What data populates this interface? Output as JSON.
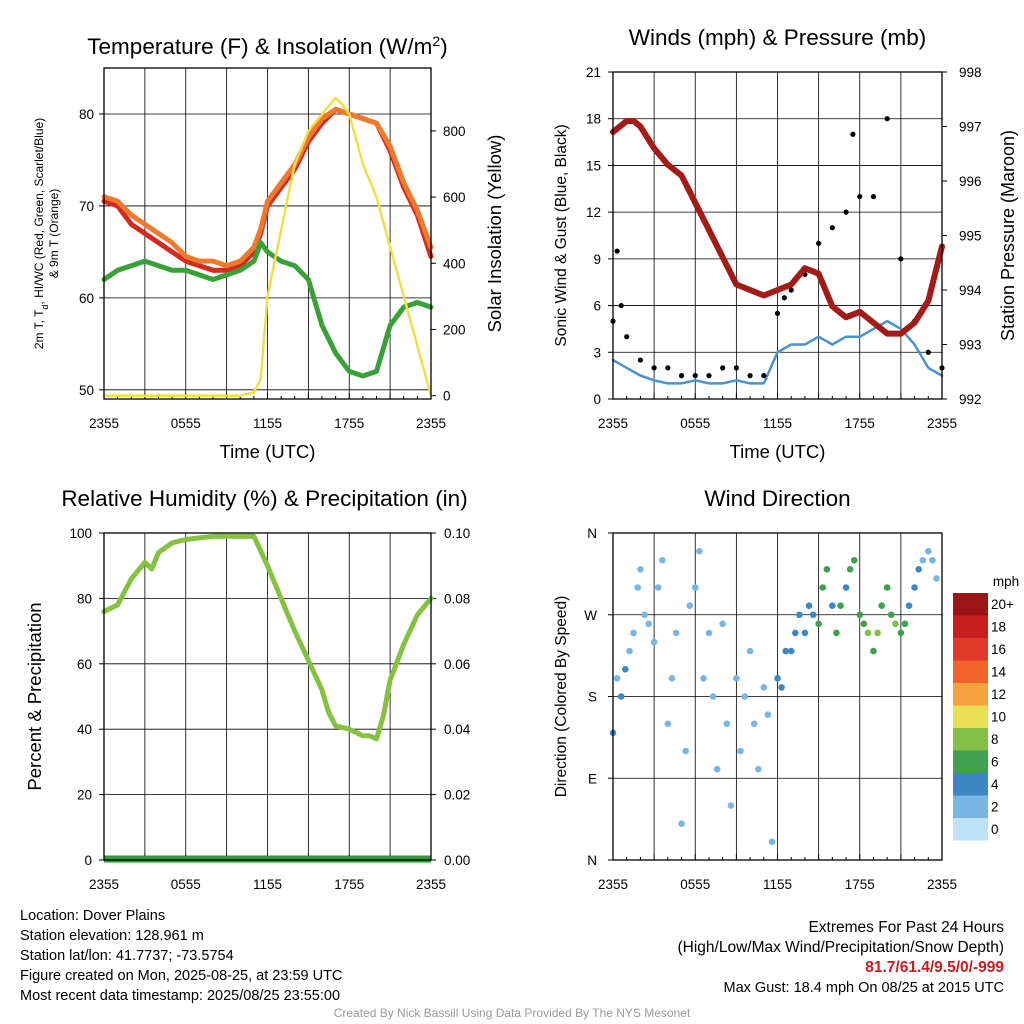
{
  "colors": {
    "temp": "#d42a1f",
    "heat_index": "#f07a2c",
    "dewpoint": "#3aa03a",
    "insolation": "#f4dd4a",
    "wind": "#4a92d0",
    "gust": "#000000",
    "pressure": "#a31a17",
    "rh": "#86c13f",
    "precip": "#2e9a3a",
    "accent_text": "#c61d22"
  },
  "x_ticks": [
    "2355",
    "0555",
    "1155",
    "1755",
    "2355"
  ],
  "chart_data": [
    {
      "id": "temp_insolation",
      "type": "line",
      "title": "Temperature (F) & Insolation (W/m²)",
      "xlabel": "Time (UTC)",
      "ylabel": "2m T, Td, HI/WC (Red, Green, Scarlet/Blue) & 9m T (Orange)",
      "ylabel_lines": [
        "2m T, T",
        "d",
        ", HI/WC (Red, Green, Scarlet/Blue)",
        "& 9m T (Orange)"
      ],
      "y2label": "Solar Insolation (Yellow)",
      "x_range_hours": [
        0,
        24
      ],
      "ylim": [
        49,
        85
      ],
      "yticks": [
        50,
        60,
        70,
        80
      ],
      "y2lim": [
        -10,
        990
      ],
      "y2ticks": [
        0,
        200,
        400,
        600,
        800
      ],
      "series": [
        {
          "name": "2m T",
          "color_key": "temp",
          "x": [
            0,
            1,
            2,
            3,
            4,
            5,
            6,
            7,
            8,
            9,
            10,
            11,
            11.5,
            12,
            13,
            14,
            15,
            16,
            17,
            18,
            19,
            20,
            21,
            22,
            23,
            24
          ],
          "y": [
            70.5,
            70,
            68,
            67,
            66,
            65,
            64,
            63.5,
            63,
            63,
            63.5,
            65,
            67,
            70,
            72,
            74,
            77,
            79,
            80.5,
            80,
            79.5,
            79,
            76,
            72,
            69,
            64.5
          ]
        },
        {
          "name": "9m T",
          "color_key": "heat_index",
          "x": [
            0,
            1,
            2,
            3,
            4,
            5,
            6,
            7,
            8,
            9,
            10,
            11,
            11.5,
            12,
            13,
            14,
            15,
            16,
            17,
            18,
            19,
            20,
            21,
            22,
            23,
            24
          ],
          "y": [
            71,
            70.5,
            69,
            68,
            67,
            66,
            64.5,
            64,
            64,
            63.5,
            64,
            65.5,
            67.5,
            70.5,
            72.5,
            74.5,
            77.5,
            79.5,
            80.5,
            80,
            79.5,
            79,
            76.5,
            72.5,
            69.5,
            65.5
          ]
        },
        {
          "name": "Td",
          "color_key": "dewpoint",
          "x": [
            0,
            1,
            2,
            3,
            4,
            5,
            6,
            7,
            8,
            9,
            10,
            11,
            11.5,
            12,
            13,
            14,
            15,
            16,
            17,
            18,
            19,
            20,
            21,
            22,
            23,
            24
          ],
          "y": [
            62,
            63,
            63.5,
            64,
            63.5,
            63,
            63,
            62.5,
            62,
            62.5,
            63,
            64,
            66,
            65,
            64,
            63.5,
            62,
            57,
            54,
            52,
            51.5,
            52,
            57,
            59,
            59.5,
            59
          ]
        },
        {
          "name": "Insolation",
          "axis": "right",
          "color_key": "insolation",
          "x": [
            0,
            5,
            10,
            11,
            11.5,
            12,
            13,
            14,
            15,
            16,
            17,
            17.5,
            18,
            19,
            20,
            21,
            22,
            23,
            24
          ],
          "y": [
            0,
            0,
            0,
            10,
            50,
            300,
            500,
            700,
            800,
            850,
            900,
            880,
            850,
            700,
            600,
            450,
            300,
            150,
            0
          ]
        }
      ]
    },
    {
      "id": "winds_pressure",
      "type": "line",
      "title": "Winds (mph) & Pressure (mb)",
      "xlabel": "Time (UTC)",
      "ylabel": "Sonic Wind & Gust (Blue, Black)",
      "y2label": "Station Pressure (Maroon)",
      "x_range_hours": [
        0,
        24
      ],
      "ylim": [
        0,
        21
      ],
      "yticks": [
        0,
        3,
        6,
        9,
        12,
        15,
        18,
        21
      ],
      "y2lim": [
        992,
        998
      ],
      "y2ticks": [
        992,
        993,
        994,
        995,
        996,
        997,
        998
      ],
      "series": [
        {
          "name": "Sonic Wind",
          "color_key": "wind",
          "x": [
            0,
            1,
            2,
            3,
            4,
            5,
            6,
            7,
            8,
            9,
            10,
            11,
            12,
            13,
            14,
            15,
            16,
            17,
            18,
            19,
            20,
            21,
            22,
            23,
            24
          ],
          "y": [
            2.5,
            2,
            1.5,
            1.2,
            1,
            1,
            1.2,
            1,
            1,
            1.2,
            1,
            1,
            3,
            3.5,
            3.5,
            4,
            3.5,
            4,
            4,
            4.5,
            5,
            4.5,
            3.5,
            2,
            1.5
          ]
        },
        {
          "name": "Gust",
          "mode": "markers",
          "color_key": "gust",
          "x": [
            0,
            0.3,
            0.6,
            1,
            2,
            3,
            4,
            5,
            6,
            7,
            8,
            9,
            10,
            11,
            12,
            12.5,
            13,
            14,
            15,
            16,
            17,
            17.5,
            18,
            19,
            20,
            21,
            22,
            23,
            24
          ],
          "y": [
            5,
            9.5,
            6,
            4,
            2.5,
            2,
            2,
            1.5,
            1.5,
            1.5,
            2,
            2,
            1.5,
            1.5,
            5.5,
            6.5,
            7,
            8,
            10,
            11,
            12,
            17,
            13,
            13,
            18,
            9,
            5,
            3,
            2
          ]
        },
        {
          "name": "Pressure",
          "axis": "right",
          "color_key": "pressure",
          "x": [
            0,
            0.5,
            1,
            1.5,
            2,
            3,
            4,
            5,
            6,
            7,
            8,
            9,
            10,
            11,
            12,
            13,
            14,
            15,
            16,
            17,
            18,
            19,
            20,
            21,
            22,
            23,
            23.5,
            24
          ],
          "y": [
            996.9,
            997,
            997.1,
            997.1,
            997,
            996.6,
            996.3,
            996.1,
            995.6,
            995.1,
            994.6,
            994.1,
            994,
            993.9,
            994,
            994.1,
            994.4,
            994.3,
            993.7,
            993.5,
            993.6,
            993.4,
            993.2,
            993.2,
            993.4,
            993.8,
            994.3,
            994.8
          ]
        }
      ]
    },
    {
      "id": "rh_precip",
      "type": "line",
      "title": "Relative Humidity (%) & Precipitation (in)",
      "xlabel": "",
      "ylabel": "Percent & Precipitation",
      "x_range_hours": [
        0,
        24
      ],
      "ylim": [
        0,
        100
      ],
      "yticks": [
        0,
        20,
        40,
        60,
        80,
        100
      ],
      "y2lim": [
        0,
        0.1
      ],
      "y2ticks": [
        "0.00",
        "0.02",
        "0.04",
        "0.06",
        "0.08",
        "0.10"
      ],
      "series": [
        {
          "name": "RH",
          "color_key": "rh",
          "x": [
            0,
            1,
            1.5,
            2,
            3,
            3.5,
            4,
            5,
            6,
            7,
            8,
            9,
            10,
            11,
            12,
            13,
            14,
            15,
            16,
            16.5,
            17,
            18,
            19,
            19.5,
            20,
            20.5,
            21,
            22,
            23,
            24
          ],
          "y": [
            76,
            78,
            82,
            86,
            91,
            89,
            94,
            97,
            98,
            98.5,
            99,
            99,
            99,
            99,
            90,
            80,
            70,
            61,
            52,
            45,
            41,
            40,
            38,
            38,
            37,
            44,
            55,
            66,
            75,
            80
          ]
        },
        {
          "name": "Precipitation",
          "color_key": "precip",
          "x": [
            0,
            24
          ],
          "y": [
            0,
            0
          ]
        }
      ]
    },
    {
      "id": "wind_direction",
      "type": "scatter",
      "title": "Wind Direction",
      "ylabel": "Direction (Colored By Speed)",
      "x_range_hours": [
        0,
        24
      ],
      "ylim": [
        0,
        360
      ],
      "ytick_labels": [
        "N",
        "E",
        "S",
        "W",
        "N"
      ],
      "colorbar": {
        "title": "mph",
        "labels": [
          "20+",
          "18",
          "16",
          "14",
          "12",
          "10",
          "8",
          "6",
          "4",
          "2",
          "0"
        ],
        "colors": [
          "#9b1515",
          "#c81e1e",
          "#e03a2a",
          "#f0632a",
          "#f7a13f",
          "#e8df54",
          "#82c04a",
          "#3fa050",
          "#3f87c4",
          "#79b6e3",
          "#bfe4f7"
        ]
      },
      "points": {
        "x": [
          0,
          0.3,
          0.6,
          0.9,
          1.2,
          1.5,
          1.8,
          2.0,
          2.3,
          2.6,
          3.0,
          3.3,
          3.6,
          4.0,
          4.3,
          4.6,
          5.0,
          5.3,
          5.6,
          6.0,
          6.3,
          6.6,
          7.0,
          7.3,
          7.6,
          8.0,
          8.3,
          8.6,
          9.0,
          9.3,
          9.6,
          10.0,
          10.3,
          10.6,
          11.0,
          11.3,
          11.6,
          12.0,
          12.3,
          12.6,
          13.0,
          13.3,
          13.6,
          14.0,
          14.3,
          14.6,
          15.0,
          15.3,
          15.6,
          16.0,
          16.3,
          16.6,
          17.0,
          17.3,
          17.6,
          18.0,
          18.3,
          18.6,
          19.0,
          19.3,
          19.6,
          20.0,
          20.3,
          20.6,
          21.0,
          21.3,
          21.6,
          22.0,
          22.3,
          22.6,
          23.0,
          23.3,
          23.6
        ],
        "y": [
          140,
          200,
          180,
          210,
          230,
          250,
          300,
          320,
          270,
          260,
          240,
          300,
          330,
          150,
          200,
          250,
          40,
          120,
          280,
          300,
          340,
          200,
          250,
          180,
          100,
          260,
          150,
          60,
          200,
          120,
          180,
          230,
          150,
          100,
          190,
          160,
          20,
          200,
          190,
          230,
          230,
          250,
          270,
          250,
          280,
          270,
          260,
          300,
          320,
          280,
          250,
          280,
          300,
          320,
          330,
          270,
          260,
          250,
          230,
          250,
          280,
          300,
          270,
          260,
          250,
          260,
          280,
          300,
          320,
          330,
          340,
          330,
          310
        ],
        "speed": [
          3,
          2,
          3,
          3,
          2,
          1,
          1,
          1,
          1,
          1,
          1,
          1,
          1,
          1,
          1,
          1,
          1,
          1,
          1,
          1,
          1,
          1,
          1,
          1,
          1,
          1,
          1,
          1,
          1,
          1,
          1,
          1,
          1,
          1,
          1,
          2,
          1,
          3,
          3,
          3,
          4,
          4,
          4,
          4,
          4,
          4,
          5,
          6,
          5,
          4,
          5,
          6,
          4,
          5,
          6,
          5,
          6,
          7,
          6,
          7,
          6,
          5,
          6,
          7,
          6,
          5,
          4,
          3,
          3,
          2,
          2,
          2,
          2
        ]
      }
    }
  ],
  "info_left": [
    "Location: Dover Plains",
    "Station elevation: 128.961 m",
    "Station lat/lon: 41.7737; -73.5754",
    "Figure created on Mon, 2025-08-25, at 23:59 UTC",
    "Most recent data timestamp: 2025/08/25 23:55:00"
  ],
  "info_right": {
    "line1": "Extremes For Past 24 Hours",
    "line2": "(High/Low/Max Wind/Precipitation/Snow Depth)",
    "values": "81.7/61.4/9.5/0/-999",
    "max_gust": "Max Gust: 18.4 mph On 08/25 at 2015 UTC"
  },
  "credit": "Created By Nick Bassill Using Data Provided By The NYS Mesonet"
}
